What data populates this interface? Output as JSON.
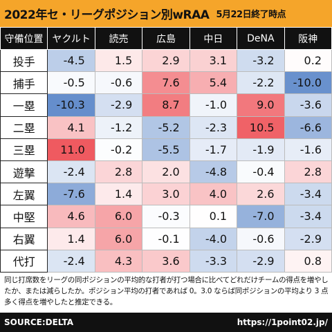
{
  "title": "2022年セ・リーグポジション別wRAA",
  "subtitle": "5月22日終了時点",
  "chart_data": {
    "type": "heatmap",
    "corner_label": "守備位置",
    "columns": [
      "ヤクルト",
      "読売",
      "広島",
      "中日",
      "DeNA",
      "阪神"
    ],
    "rows": [
      {
        "label": "投手",
        "values": [
          "-4.5",
          "1.5",
          "2.9",
          "3.1",
          "-3.2",
          "0.2"
        ]
      },
      {
        "label": "捕手",
        "values": [
          "-0.5",
          "-0.6",
          "7.6",
          "5.4",
          "-2.2",
          "-10.0"
        ]
      },
      {
        "label": "一塁",
        "values": [
          "-10.3",
          "-2.9",
          "8.7",
          "-1.0",
          "9.0",
          "-3.6"
        ]
      },
      {
        "label": "二塁",
        "values": [
          "4.1",
          "-1.2",
          "-5.2",
          "-2.3",
          "10.5",
          "-6.6"
        ]
      },
      {
        "label": "三塁",
        "values": [
          "11.0",
          "-0.2",
          "-5.5",
          "-1.7",
          "-1.9",
          "-1.6"
        ]
      },
      {
        "label": "遊撃",
        "values": [
          "-2.4",
          "2.8",
          "2.0",
          "-4.8",
          "-0.4",
          "2.8"
        ]
      },
      {
        "label": "左翼",
        "values": [
          "-7.6",
          "1.4",
          "3.0",
          "4.0",
          "2.6",
          "-3.4"
        ]
      },
      {
        "label": "中堅",
        "values": [
          "4.6",
          "6.0",
          "-0.3",
          "0.1",
          "-7.0",
          "-3.4"
        ]
      },
      {
        "label": "右翼",
        "values": [
          "1.4",
          "6.0",
          "-0.1",
          "-4.0",
          "-0.6",
          "-2.9"
        ]
      },
      {
        "label": "代打",
        "values": [
          "-2.4",
          "4.3",
          "3.6",
          "-3.3",
          "-2.9",
          "0.8"
        ]
      }
    ],
    "color_positive": "#ef5a60",
    "color_negative": "#5a86c8",
    "color_neutral": "#ffffff"
  },
  "note": "同じ打席数をリーグの同ポジションの平均的な打者が打つ場合に比べてどれだけチームの得点を増やしたか、または減らしたか。ポジション平均の打者であれば 0。3.0 ならば同ポジションの平均より 3 点多く得点を増やしたと推定できる。",
  "footer": {
    "source": "SOURCE:DELTA",
    "url": "https://1point02.jp/"
  },
  "colors": {
    "title_bar": "#f5a52a",
    "header_bg": "#111111",
    "footer_bg": "#111111"
  }
}
